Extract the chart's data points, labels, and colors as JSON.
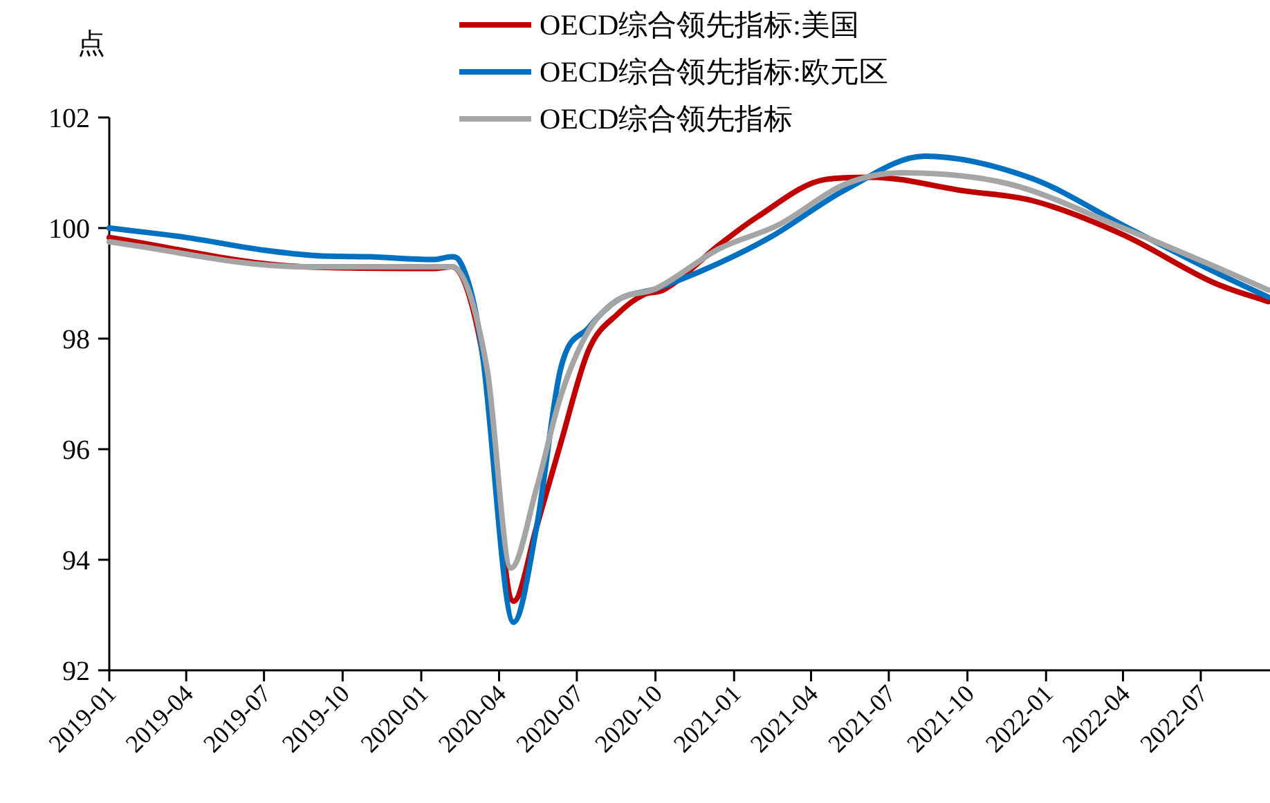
{
  "chart_data": {
    "type": "line",
    "ylabel": "点",
    "xlim": [
      "2019-01-01",
      "2022-09-20"
    ],
    "ylim": [
      92,
      102
    ],
    "yticks": [
      92,
      94,
      96,
      98,
      100,
      102
    ],
    "xticks": [
      "2019-01",
      "2019-04",
      "2019-07",
      "2019-10",
      "2020-01",
      "2020-04",
      "2020-07",
      "2020-10",
      "2021-01",
      "2021-04",
      "2021-07",
      "2021-10",
      "2022-01",
      "2022-04",
      "2022-07"
    ],
    "grid": false,
    "legend": "top",
    "marker": "none",
    "line_style": "solid",
    "series": [
      {
        "name": "OECD综合领先指标:美国",
        "color": "#c00000",
        "x": [
          "2019-01-01",
          "2019-08-15",
          "2020-01-15",
          "2020-02-06",
          "2020-03-13",
          "2020-04-18",
          "2020-05-15",
          "2020-06-12",
          "2020-07-15",
          "2020-08-18",
          "2020-09-18",
          "2020-10-10",
          "2020-12-15",
          "2021-01-28",
          "2021-04-18",
          "2021-06-10",
          "2021-09-28",
          "2021-12-15",
          "2022-04-01",
          "2022-07-18",
          "2022-09-18"
        ],
        "values": [
          99.83,
          99.3,
          99.27,
          99.3,
          97.7,
          93.25,
          94.6,
          96.1,
          97.8,
          98.45,
          98.8,
          98.88,
          99.7,
          100.2,
          100.88,
          100.92,
          100.67,
          100.5,
          99.88,
          99.0,
          98.67
        ]
      },
      {
        "name": "OECD综合领先指标:欧元区",
        "color": "#0070c0",
        "x": [
          "2019-01-01",
          "2019-04-01",
          "2019-07-01",
          "2019-09-01",
          "2019-11-01",
          "2020-01-15",
          "2020-02-06",
          "2020-02-15",
          "2020-03-02",
          "2020-03-13",
          "2020-04-18",
          "2020-05-15",
          "2020-06-12",
          "2020-07-15",
          "2020-08-18",
          "2020-10-01",
          "2020-12-15",
          "2021-02-12",
          "2021-05-12",
          "2021-08-12",
          "2021-12-15",
          "2022-04-01",
          "2022-07-18",
          "2022-09-18"
        ],
        "values": [
          100.0,
          99.83,
          99.6,
          99.5,
          99.48,
          99.43,
          99.48,
          99.4,
          98.67,
          97.67,
          92.87,
          94.6,
          97.45,
          98.2,
          98.7,
          98.9,
          99.37,
          99.83,
          100.7,
          101.3,
          100.9,
          100.05,
          99.2,
          98.75
        ]
      },
      {
        "name": "OECD综合领先指标",
        "color": "#a5a5a5",
        "x": [
          "2019-01-01",
          "2019-08-15",
          "2020-01-15",
          "2020-02-06",
          "2020-03-18",
          "2020-04-15",
          "2020-05-15",
          "2020-06-12",
          "2020-07-15",
          "2020-08-18",
          "2020-10-01",
          "2020-12-15",
          "2021-02-21",
          "2021-05-12",
          "2021-07-15",
          "2021-11-18",
          "2022-04-01",
          "2022-07-18",
          "2022-09-18"
        ],
        "values": [
          99.75,
          99.3,
          99.3,
          99.3,
          97.45,
          93.85,
          95.3,
          96.95,
          98.15,
          98.7,
          98.9,
          99.63,
          100.05,
          100.8,
          101.0,
          100.8,
          100.0,
          99.3,
          98.88
        ]
      }
    ]
  }
}
